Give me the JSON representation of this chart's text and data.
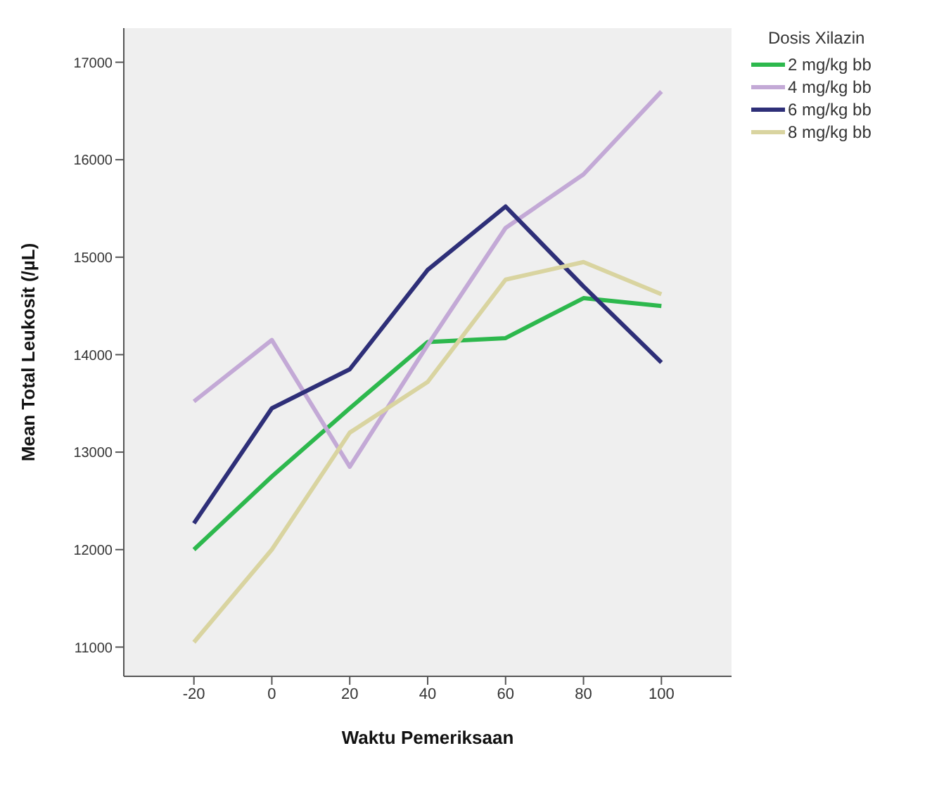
{
  "chart_data": {
    "type": "line",
    "xlabel": "Waktu Pemeriksaan",
    "ylabel": "Mean Total Leukosit (/µL)",
    "legend_title": "Dosis Xilazin",
    "legend": "top right",
    "grid": false,
    "marker": "none",
    "line_style": "solid",
    "x": [
      -20,
      0,
      20,
      40,
      60,
      80,
      100
    ],
    "xlim": [
      -38,
      118
    ],
    "xticks": [
      -20,
      0,
      20,
      40,
      60,
      80,
      100
    ],
    "ylim": [
      10700,
      17350
    ],
    "yticks": [
      11000,
      12000,
      13000,
      14000,
      15000,
      16000,
      17000
    ],
    "series": [
      {
        "name": "2 mg/kg bb",
        "color": "#2db84d",
        "values": [
          12000,
          12750,
          13450,
          14130,
          14170,
          14580,
          14500
        ]
      },
      {
        "name": "4 mg/kg bb",
        "color": "#c3a9d6",
        "values": [
          13520,
          14150,
          12850,
          14100,
          15300,
          15850,
          16700
        ]
      },
      {
        "name": "6 mg/kg bb",
        "color": "#2e2f78",
        "values": [
          12270,
          13450,
          13850,
          14870,
          15520,
          14700,
          13920
        ]
      },
      {
        "name": "8 mg/kg bb",
        "color": "#d9d4a0",
        "values": [
          11050,
          12000,
          13200,
          13720,
          14770,
          14950,
          14620
        ]
      }
    ]
  }
}
